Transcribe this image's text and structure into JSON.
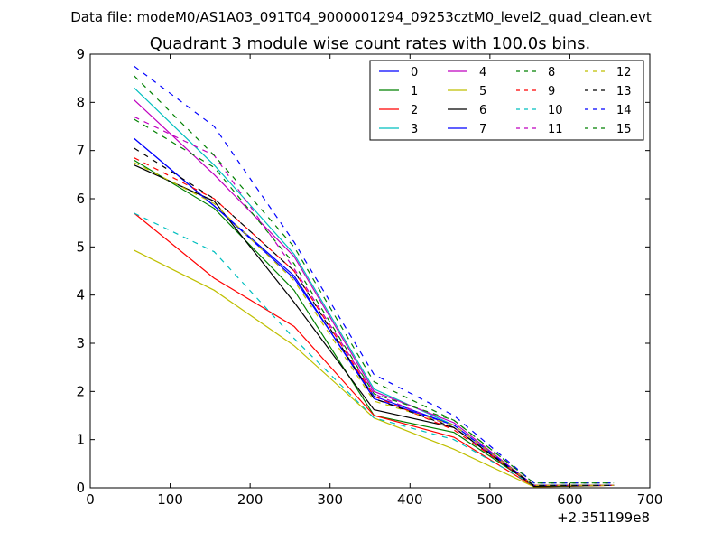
{
  "suptitle": "Data file: modeM0/AS1A03_091T04_9000001294_09253cztM0_level2_quad_clean.evt",
  "chart_data": {
    "type": "line",
    "title": "Quadrant 3 module wise count rates with 100.0s bins.",
    "xlabel": "",
    "ylabel": "",
    "x_offset_label": "+2.351199e8",
    "xlim": [
      0,
      700
    ],
    "ylim": [
      0,
      9
    ],
    "xticks": [
      0,
      100,
      200,
      300,
      400,
      500,
      600,
      700
    ],
    "yticks": [
      0,
      1,
      2,
      3,
      4,
      5,
      6,
      7,
      8,
      9
    ],
    "x": [
      55,
      155,
      255,
      355,
      455,
      555,
      655
    ],
    "legend_location": "top-right",
    "legend_columns": 4,
    "series": [
      {
        "name": "0",
        "color": "#0000ff",
        "style": "solid",
        "values": [
          7.25,
          5.85,
          4.35,
          1.9,
          1.3,
          0.05,
          0.05
        ]
      },
      {
        "name": "1",
        "color": "#008000",
        "style": "solid",
        "values": [
          6.8,
          5.8,
          4.1,
          1.5,
          1.15,
          0.05,
          0.05
        ]
      },
      {
        "name": "2",
        "color": "#ff0000",
        "style": "solid",
        "values": [
          5.7,
          4.35,
          3.35,
          1.5,
          1.05,
          0.02,
          0.05
        ]
      },
      {
        "name": "3",
        "color": "#00bfbf",
        "style": "solid",
        "values": [
          8.3,
          6.7,
          4.85,
          2.05,
          1.3,
          0.05,
          0.05
        ]
      },
      {
        "name": "4",
        "color": "#bf00bf",
        "style": "solid",
        "values": [
          8.05,
          6.5,
          4.8,
          2.0,
          1.35,
          0.05,
          0.05
        ]
      },
      {
        "name": "5",
        "color": "#bfbf00",
        "style": "solid",
        "values": [
          4.93,
          4.1,
          2.95,
          1.45,
          0.8,
          0.02,
          0.05
        ]
      },
      {
        "name": "6",
        "color": "#000000",
        "style": "solid",
        "values": [
          6.7,
          5.95,
          3.85,
          1.62,
          1.25,
          0.03,
          0.05
        ]
      },
      {
        "name": "7",
        "color": "#0000ff",
        "style": "solid",
        "values": [
          7.25,
          5.85,
          4.4,
          1.85,
          1.3,
          0.05,
          0.05
        ]
      },
      {
        "name": "8",
        "color": "#008000",
        "style": "dashed",
        "values": [
          7.65,
          6.65,
          4.65,
          1.95,
          1.4,
          0.1,
          0.1
        ]
      },
      {
        "name": "9",
        "color": "#ff0000",
        "style": "dashed",
        "values": [
          6.85,
          6.0,
          4.5,
          1.9,
          1.2,
          0.05,
          0.05
        ]
      },
      {
        "name": "10",
        "color": "#00bfbf",
        "style": "dashed",
        "values": [
          5.7,
          4.9,
          3.1,
          1.45,
          1.0,
          0.05,
          0.05
        ]
      },
      {
        "name": "11",
        "color": "#bf00bf",
        "style": "dashed",
        "values": [
          7.7,
          6.9,
          4.55,
          1.95,
          1.25,
          0.05,
          0.05
        ]
      },
      {
        "name": "12",
        "color": "#bfbf00",
        "style": "dashed",
        "values": [
          6.75,
          5.9,
          4.3,
          1.8,
          1.3,
          0.05,
          0.05
        ]
      },
      {
        "name": "13",
        "color": "#000000",
        "style": "dashed",
        "values": [
          7.05,
          6.0,
          4.5,
          1.85,
          1.25,
          0.05,
          0.05
        ]
      },
      {
        "name": "14",
        "color": "#0000ff",
        "style": "dashed",
        "values": [
          8.75,
          7.5,
          5.1,
          2.35,
          1.5,
          0.1,
          0.1
        ]
      },
      {
        "name": "15",
        "color": "#008000",
        "style": "dashed",
        "values": [
          8.55,
          6.9,
          5.0,
          2.2,
          1.4,
          0.1,
          0.1
        ]
      }
    ]
  }
}
